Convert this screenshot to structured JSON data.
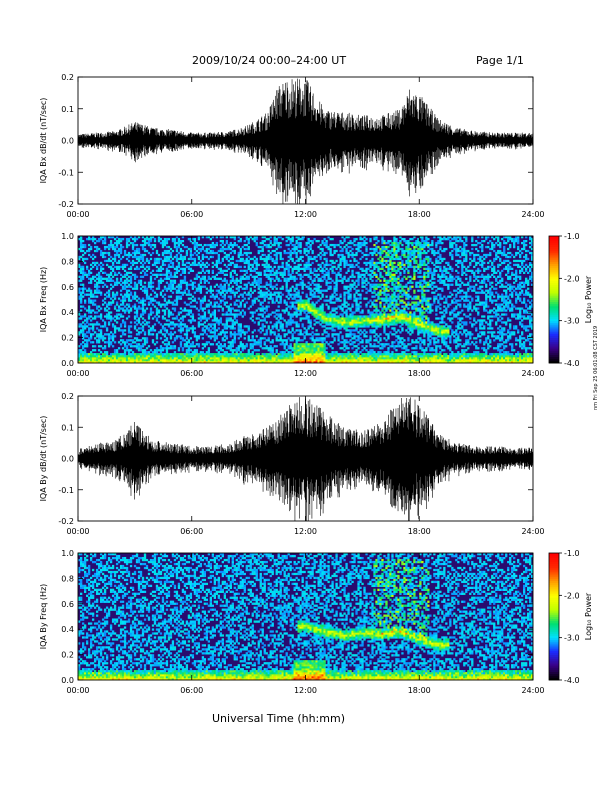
{
  "header": {
    "title": "2009/10/24  00:00–24:00 UT",
    "page": "Page 1/1"
  },
  "side_stamp": "nm Fri Sep 25 06:01:08 CST 2019",
  "xaxis_label": "Universal Time (hh:mm)",
  "colors": {
    "frame": "#000000",
    "spectrogram_background": "#2a0b6e",
    "colorbar_stops": [
      "#000000",
      "#3a0088",
      "#1a2cff",
      "#00e0ff",
      "#00e070",
      "#c0ff00",
      "#ffff00",
      "#ffa000",
      "#ff2a00",
      "#ff0000"
    ]
  },
  "chart_data": [
    {
      "type": "line",
      "ylabel": "IQA Bx dB/dt (nT/sec)",
      "x_ticks": [
        "00:00",
        "06:00",
        "12:00",
        "18:00",
        "24:00"
      ],
      "y_ticks": [
        "0.2",
        "0.1",
        "0.0",
        "-0.1",
        "-0.2"
      ],
      "xlim": [
        0,
        24
      ],
      "ylim": [
        -0.2,
        0.2
      ],
      "envelope": {
        "hours": [
          0,
          1,
          2,
          3,
          4,
          5,
          6,
          7,
          8,
          9,
          10,
          10.5,
          11,
          11.5,
          12,
          12.5,
          13,
          14,
          15,
          16,
          17,
          17.5,
          18,
          19,
          20,
          21,
          22,
          23,
          24
        ],
        "amplitude": [
          0.02,
          0.025,
          0.03,
          0.06,
          0.04,
          0.035,
          0.025,
          0.025,
          0.03,
          0.05,
          0.09,
          0.17,
          0.2,
          0.2,
          0.2,
          0.15,
          0.1,
          0.09,
          0.08,
          0.08,
          0.1,
          0.17,
          0.15,
          0.07,
          0.04,
          0.03,
          0.025,
          0.025,
          0.025
        ]
      }
    },
    {
      "type": "heatmap",
      "ylabel": "IQA Bx Freq (Hz)",
      "x_ticks": [
        "00:00",
        "06:00",
        "12:00",
        "18:00",
        "24:00"
      ],
      "y_ticks": [
        "1.0",
        "0.8",
        "0.6",
        "0.4",
        "0.2",
        "0.0"
      ],
      "xlim": [
        0,
        24
      ],
      "ylim": [
        0,
        1.0
      ],
      "colorbar": {
        "label": "Log₁₀ Power",
        "ticks": [
          "-1.0",
          "-2.0",
          "-3.0",
          "-4.0"
        ],
        "range": [
          -4.0,
          -1.0
        ]
      },
      "emission_band": {
        "hours": [
          12,
          13,
          14,
          15,
          16,
          17,
          18,
          19
        ],
        "freq": [
          0.45,
          0.35,
          0.32,
          0.33,
          0.34,
          0.36,
          0.3,
          0.25
        ]
      }
    },
    {
      "type": "line",
      "ylabel": "IQA By dB/dt (nT/sec)",
      "x_ticks": [
        "00:00",
        "06:00",
        "12:00",
        "18:00",
        "24:00"
      ],
      "y_ticks": [
        "0.2",
        "0.1",
        "0.0",
        "-0.1",
        "-0.2"
      ],
      "xlim": [
        0,
        24
      ],
      "ylim": [
        -0.2,
        0.2
      ],
      "envelope": {
        "hours": [
          0,
          1,
          2,
          3,
          4,
          5,
          6,
          7,
          8,
          9,
          10,
          11,
          11.5,
          12,
          12.5,
          13,
          14,
          15,
          16,
          17,
          17.5,
          18,
          19,
          20,
          21,
          22,
          23,
          24
        ],
        "amplitude": [
          0.03,
          0.05,
          0.06,
          0.12,
          0.06,
          0.05,
          0.04,
          0.04,
          0.05,
          0.08,
          0.1,
          0.16,
          0.2,
          0.2,
          0.18,
          0.15,
          0.1,
          0.09,
          0.12,
          0.2,
          0.2,
          0.18,
          0.08,
          0.05,
          0.04,
          0.04,
          0.035,
          0.035
        ]
      }
    },
    {
      "type": "heatmap",
      "ylabel": "IQA By Freq (Hz)",
      "x_ticks": [
        "00:00",
        "06:00",
        "12:00",
        "18:00",
        "24:00"
      ],
      "y_ticks": [
        "1.0",
        "0.8",
        "0.6",
        "0.4",
        "0.2",
        "0.0"
      ],
      "xlim": [
        0,
        24
      ],
      "ylim": [
        0,
        1.0
      ],
      "colorbar": {
        "label": "Log₁₀ Power",
        "ticks": [
          "-1.0",
          "-2.0",
          "-3.0",
          "-4.0"
        ],
        "range": [
          -4.0,
          -1.0
        ]
      },
      "emission_band": {
        "hours": [
          12,
          13,
          14,
          15,
          16,
          17,
          18,
          19
        ],
        "freq": [
          0.42,
          0.38,
          0.35,
          0.37,
          0.36,
          0.38,
          0.32,
          0.28
        ]
      }
    }
  ]
}
